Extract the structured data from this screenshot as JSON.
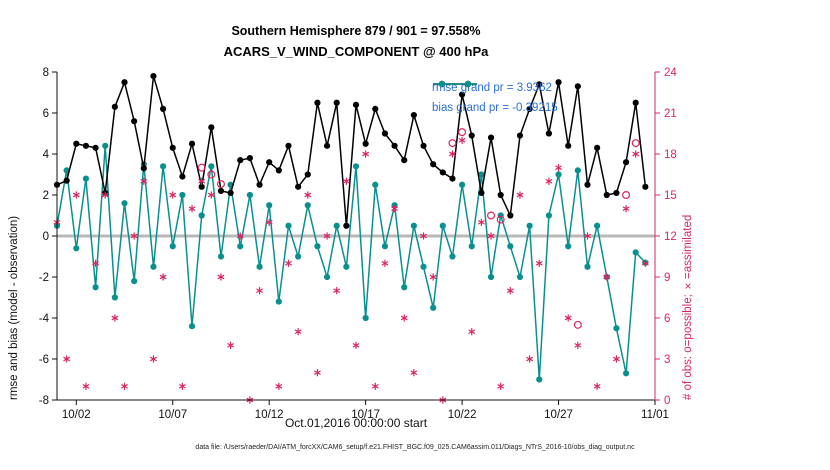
{
  "caption": "data file: /Users/raeder/DAI/ATM_forcXX/CAM6_setup/f.e21.FHIST_BGC.f09_025.CAM6assim.011/Diags_NTrS_2016-10/obs_diag_output.nc",
  "chart_data": {
    "type": "line",
    "title_line1": "Southern Hemisphere 879 / 901 = 97.558%",
    "title_line2": "ACARS_V_WIND_COMPONENT @ 400 hPa",
    "x_axis": {
      "label": "Oct.01,2016 00:00:00 start",
      "ticks": [
        {
          "value": 2,
          "label": "10/02"
        },
        {
          "value": 7,
          "label": "10/07"
        },
        {
          "value": 12,
          "label": "10/12"
        },
        {
          "value": 17,
          "label": "10/17"
        },
        {
          "value": 22,
          "label": "10/22"
        },
        {
          "value": 27,
          "label": "10/27"
        },
        {
          "value": 32,
          "label": "11/01"
        }
      ]
    },
    "x_range": [
      1,
      32
    ],
    "y_left": {
      "label": "rmse and bias (model - observation)",
      "range": [
        -8,
        8
      ],
      "ticks": [
        -8,
        -6,
        -4,
        -2,
        0,
        2,
        4,
        6,
        8
      ],
      "color": "#111111"
    },
    "y_right": {
      "label": "# of obs: o=possible; ×=assimilated",
      "range": [
        0,
        24
      ],
      "ticks": [
        0,
        3,
        6,
        9,
        12,
        15,
        18,
        21,
        24
      ],
      "color": "#d9265f"
    },
    "zero_line": {
      "y": 0,
      "color": "#b8b8b8"
    },
    "legend_text_color": "#2a6fd4",
    "grid": false,
    "x": [
      1,
      1.5,
      2,
      2.5,
      3,
      3.5,
      4,
      4.5,
      5,
      5.5,
      6,
      6.5,
      7,
      7.5,
      8,
      8.5,
      9,
      9.5,
      10,
      10.5,
      11,
      11.5,
      12,
      12.5,
      13,
      13.5,
      14,
      14.5,
      15,
      15.5,
      16,
      16.5,
      17,
      17.5,
      18,
      18.5,
      19,
      19.5,
      20,
      20.5,
      21,
      21.5,
      22,
      22.5,
      23,
      23.5,
      24,
      24.5,
      25,
      25.5,
      26,
      26.5,
      27,
      27.5,
      28,
      28.5,
      29,
      29.5,
      30,
      30.5,
      31,
      31.5
    ],
    "series": [
      {
        "name": "rmse",
        "legend": "rmse grand pr = 3.9362",
        "color": "#000000",
        "values": [
          2.5,
          2.7,
          4.5,
          4.4,
          4.3,
          2.1,
          6.3,
          7.5,
          5.6,
          3.3,
          7.8,
          6.2,
          4.3,
          2.9,
          4.5,
          2.4,
          5.3,
          2.2,
          2.1,
          3.7,
          3.8,
          2.5,
          3.6,
          3.2,
          4.4,
          2.4,
          3,
          6.5,
          4.4,
          6.5,
          0.5,
          6.4,
          4.5,
          6.2,
          5,
          4.4,
          3.7,
          5.9,
          4.4,
          3.5,
          3.1,
          2.8,
          6.9,
          4.9,
          2.1,
          4.8,
          2,
          1,
          4.9,
          6.2,
          7.4,
          5,
          7.5,
          4.4,
          7.3,
          2.5,
          4.3,
          2,
          2.1,
          3.6,
          6.5,
          2.4
        ]
      },
      {
        "name": "bias",
        "legend": "bias grand pr = -0.39215",
        "color": "#0a8f8f",
        "values": [
          0.5,
          3.2,
          -0.6,
          2.8,
          -2.5,
          4.4,
          -3,
          1.6,
          -2.2,
          3.5,
          -1.5,
          3.4,
          -0.5,
          2,
          -4.4,
          1,
          3.4,
          -1,
          2.5,
          -0.5,
          2,
          -1.5,
          1.5,
          -3.2,
          0.5,
          -1,
          1.5,
          -0.5,
          -2,
          0.5,
          -1.5,
          3.4,
          -4,
          2.5,
          -0.5,
          1.5,
          -2.5,
          0.5,
          -1.5,
          -3.5,
          0.5,
          -1,
          2.5,
          -0.5,
          3,
          -2,
          1,
          -0.5,
          -2,
          0.5,
          -7,
          1,
          3,
          -0.5,
          3.2,
          -1.5,
          0.5,
          -2,
          -4.5,
          -6.7,
          -0.8,
          -1.3
        ]
      }
    ],
    "obs_counts": {
      "assimilated": {
        "marker": "asterisk",
        "values": [
          13,
          3,
          15,
          1,
          10,
          15,
          6,
          1,
          12,
          16,
          3,
          9,
          15,
          1,
          14,
          16,
          15,
          9,
          4,
          12,
          0,
          8,
          13,
          1,
          10,
          5,
          15,
          2,
          12,
          8,
          16,
          4,
          18,
          1,
          10,
          14,
          6,
          2,
          12,
          9,
          0,
          18,
          19,
          5,
          13,
          12,
          1,
          8,
          15,
          3,
          10,
          16,
          17,
          6,
          4,
          12,
          1,
          9,
          3,
          14,
          18,
          10
        ]
      },
      "possible": {
        "marker": "circle",
        "points": [
          [
            8.5,
            17
          ],
          [
            9,
            16.5
          ],
          [
            9.5,
            15.8
          ],
          [
            21.5,
            18.8
          ],
          [
            22,
            19.6
          ],
          [
            23.5,
            13.5
          ],
          [
            24,
            13.2
          ],
          [
            28,
            5.5
          ],
          [
            30.5,
            15
          ],
          [
            31,
            18.8
          ]
        ]
      }
    }
  }
}
